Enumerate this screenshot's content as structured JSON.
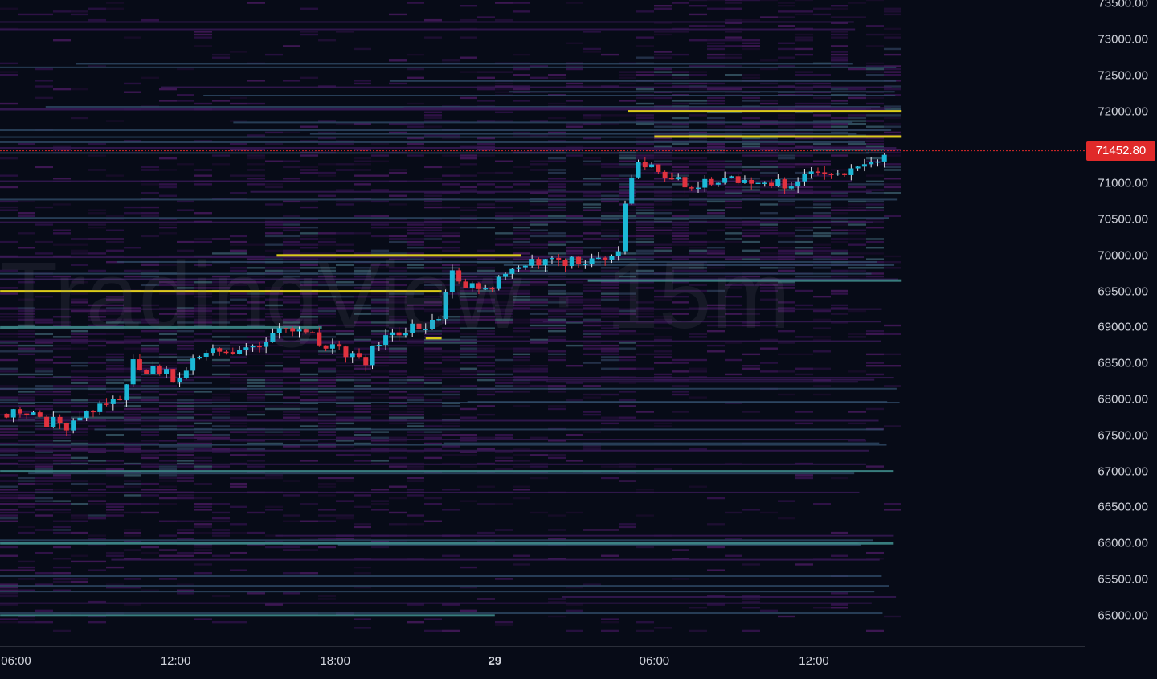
{
  "watermark": "TradingView · 15m",
  "colors": {
    "background": "#070b17",
    "up": "#1bb8d6",
    "down": "#e0323f",
    "last_price": "#e02a2a",
    "heat_low": "#3a1450",
    "heat_mid": "#3e8a8a",
    "heat_high": "#f2e01a"
  },
  "chart_data": {
    "type": "candlestick",
    "interval": "15m",
    "ylim": [
      65000,
      73500
    ],
    "last_price": "71452.80",
    "price_ticks": [
      "73500.00",
      "73000.00",
      "72500.00",
      "72000.00",
      "71000.00",
      "70500.00",
      "70000.00",
      "69500.00",
      "69000.00",
      "68500.00",
      "68000.00",
      "67500.00",
      "67000.00",
      "66500.00",
      "66000.00",
      "65500.00",
      "65000.00"
    ],
    "price_tick_values": [
      73500,
      73000,
      72500,
      72000,
      71000,
      70500,
      70000,
      69500,
      69000,
      68500,
      68000,
      67500,
      67000,
      66500,
      66000,
      65500,
      65000
    ],
    "time_ticks": [
      {
        "label": "06:00",
        "hour": 6,
        "bold": false
      },
      {
        "label": "12:00",
        "hour": 12,
        "bold": false
      },
      {
        "label": "18:00",
        "hour": 18,
        "bold": false
      },
      {
        "label": "29",
        "hour": 24,
        "bold": true
      },
      {
        "label": "06:00",
        "hour": 30,
        "bold": false
      },
      {
        "label": "12:00",
        "hour": 36,
        "bold": false
      }
    ],
    "price_path": [
      [
        5.4,
        67800
      ],
      [
        6,
        67800
      ],
      [
        7,
        67700
      ],
      [
        8,
        67650
      ],
      [
        9,
        67900
      ],
      [
        10,
        67950
      ],
      [
        10.3,
        68500
      ],
      [
        11,
        68400
      ],
      [
        12,
        68300
      ],
      [
        13,
        68600
      ],
      [
        14,
        68700
      ],
      [
        15,
        68750
      ],
      [
        16,
        69000
      ],
      [
        17,
        68900
      ],
      [
        18,
        68700
      ],
      [
        19,
        68500
      ],
      [
        20,
        68900
      ],
      [
        21,
        69000
      ],
      [
        22,
        69100
      ],
      [
        22.3,
        69800
      ],
      [
        23,
        69600
      ],
      [
        24,
        69600
      ],
      [
        25,
        69800
      ],
      [
        26,
        70000
      ],
      [
        27,
        69900
      ],
      [
        28,
        69900
      ],
      [
        28.7,
        70050
      ],
      [
        29,
        71000
      ],
      [
        29.3,
        71300
      ],
      [
        30,
        71200
      ],
      [
        31,
        71000
      ],
      [
        32,
        71000
      ],
      [
        33,
        71100
      ],
      [
        34,
        71000
      ],
      [
        35,
        71000
      ],
      [
        36,
        71200
      ],
      [
        37,
        71200
      ],
      [
        38,
        71200
      ],
      [
        38.6,
        71450
      ],
      [
        38.8,
        71452.8
      ]
    ],
    "liquidity_levels": [
      {
        "price": 72000,
        "from_hour": 29,
        "to_hour": 39.3,
        "intensity": "high"
      },
      {
        "price": 71650,
        "from_hour": 30,
        "to_hour": 39.3,
        "intensity": "high"
      },
      {
        "price": 70000,
        "from_hour": 15.8,
        "to_hour": 25,
        "intensity": "high"
      },
      {
        "price": 69500,
        "from_hour": 5.4,
        "to_hour": 22,
        "intensity": "high"
      },
      {
        "price": 69000,
        "from_hour": 5.4,
        "to_hour": 17.5,
        "intensity": "medium"
      },
      {
        "price": 68850,
        "from_hour": 21.4,
        "to_hour": 22,
        "intensity": "high"
      },
      {
        "price": 69650,
        "from_hour": 27.5,
        "to_hour": 39.3,
        "intensity": "medium"
      },
      {
        "price": 65000,
        "from_hour": 5.4,
        "to_hour": 24,
        "intensity": "medium"
      },
      {
        "price": 66000,
        "from_hour": 5.4,
        "to_hour": 39,
        "intensity": "medium"
      },
      {
        "price": 67000,
        "from_hour": 5.4,
        "to_hour": 39,
        "intensity": "medium"
      }
    ]
  }
}
